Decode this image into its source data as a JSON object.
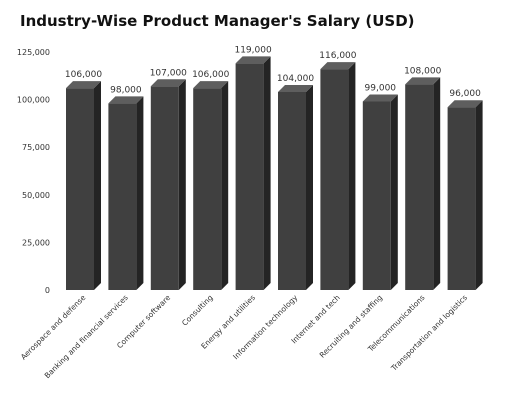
{
  "chart_data": {
    "type": "bar",
    "title": "Industry-Wise Product Manager's Salary (USD)",
    "xlabel": "",
    "ylabel": "",
    "categories": [
      "Aerospace and defense",
      "Banking and financial services",
      "Computer software",
      "Consulting",
      "Energy and utilities",
      "Information technology",
      "Internet and tech",
      "Recruiting and staffing",
      "Telecommunications",
      "Transportation and logistics"
    ],
    "values": [
      106000,
      98000,
      107000,
      106000,
      119000,
      104000,
      116000,
      99000,
      108000,
      96000
    ],
    "value_labels": [
      "106,000",
      "98,000",
      "107,000",
      "106,000",
      "119,000",
      "104,000",
      "116,000",
      "99,000",
      "108,000",
      "96,000"
    ],
    "yticks": [
      0,
      25000,
      50000,
      75000,
      100000,
      125000
    ],
    "ytick_labels": [
      "0",
      "25,000",
      "50,000",
      "75,000",
      "100,000",
      "125,000"
    ],
    "ylim": [
      0,
      125000
    ],
    "grid": false,
    "legend": "none",
    "colors": {
      "bar_front": "#404040",
      "bar_top": "#5e5e5e",
      "bar_side": "#242424"
    }
  }
}
